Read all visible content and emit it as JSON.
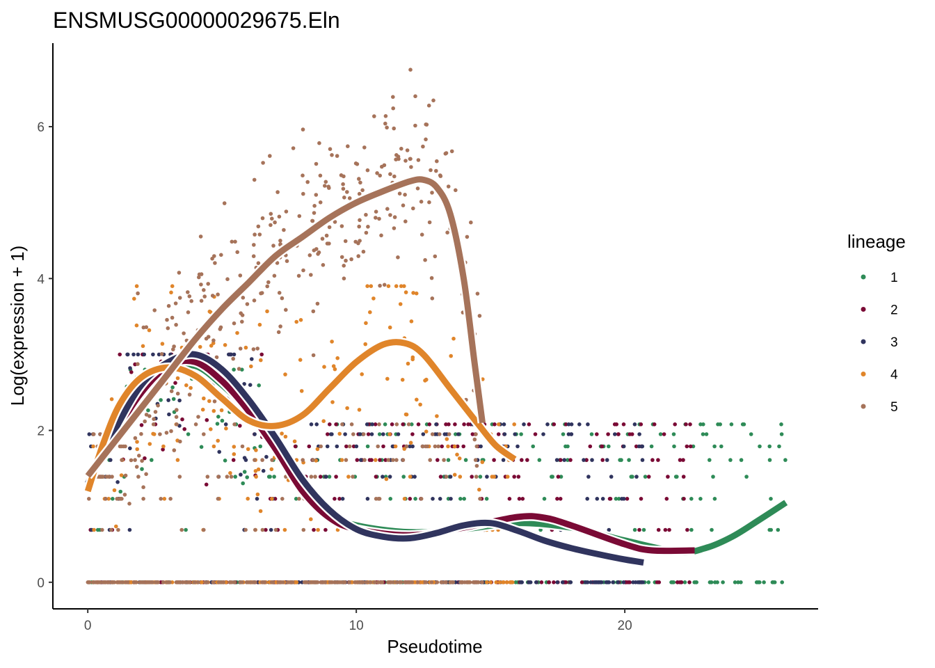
{
  "chart_data": {
    "type": "scatter",
    "title": "ENSMUSG00000029675.Eln",
    "xlabel": "Pseudotime",
    "ylabel": "Log(expression + 1)",
    "xlim": [
      -1.3,
      27.2
    ],
    "ylim": [
      -0.35,
      7.1
    ],
    "xticks": [
      0,
      10,
      20
    ],
    "yticks": [
      0,
      2,
      4,
      6
    ],
    "legend": {
      "title": "lineage",
      "position": "right"
    },
    "series": [
      {
        "name": "1",
        "color": "#2e8b57",
        "x_range": [
          0,
          26
        ],
        "peak": 2.8,
        "curve": [
          [
            0,
            1.3
          ],
          [
            1,
            1.9
          ],
          [
            2,
            2.45
          ],
          [
            3,
            2.8
          ],
          [
            4,
            2.85
          ],
          [
            5,
            2.6
          ],
          [
            6,
            2.25
          ],
          [
            7,
            1.8
          ],
          [
            8,
            1.25
          ],
          [
            9,
            0.9
          ],
          [
            10,
            0.75
          ],
          [
            12,
            0.66
          ],
          [
            14,
            0.7
          ],
          [
            16,
            0.78
          ],
          [
            18,
            0.72
          ],
          [
            20,
            0.55
          ],
          [
            22,
            0.4
          ],
          [
            23,
            0.45
          ],
          [
            24,
            0.6
          ],
          [
            25,
            0.82
          ],
          [
            26,
            1.05
          ]
        ]
      },
      {
        "name": "2",
        "color": "#7a0a35",
        "x_range": [
          0,
          22.6
        ],
        "peak": 3.0,
        "curve": [
          [
            0,
            1.3
          ],
          [
            1,
            1.95
          ],
          [
            2,
            2.5
          ],
          [
            3,
            2.85
          ],
          [
            4,
            2.9
          ],
          [
            5,
            2.65
          ],
          [
            6,
            2.25
          ],
          [
            7,
            1.75
          ],
          [
            8,
            1.2
          ],
          [
            9,
            0.85
          ],
          [
            10,
            0.7
          ],
          [
            12,
            0.62
          ],
          [
            14,
            0.72
          ],
          [
            16,
            0.86
          ],
          [
            17,
            0.85
          ],
          [
            18,
            0.75
          ],
          [
            20,
            0.5
          ],
          [
            21,
            0.42
          ],
          [
            22.6,
            0.42
          ]
        ]
      },
      {
        "name": "3",
        "color": "#30345e",
        "x_range": [
          0,
          20.7
        ],
        "peak": 3.0,
        "curve": [
          [
            0,
            1.3
          ],
          [
            1,
            2.0
          ],
          [
            2,
            2.6
          ],
          [
            3,
            2.9
          ],
          [
            4,
            3.0
          ],
          [
            5,
            2.8
          ],
          [
            6,
            2.4
          ],
          [
            7,
            1.9
          ],
          [
            8,
            1.35
          ],
          [
            9,
            0.95
          ],
          [
            10,
            0.7
          ],
          [
            11,
            0.6
          ],
          [
            12,
            0.58
          ],
          [
            13,
            0.65
          ],
          [
            14,
            0.75
          ],
          [
            15,
            0.78
          ],
          [
            16,
            0.68
          ],
          [
            17,
            0.55
          ],
          [
            18,
            0.45
          ],
          [
            19,
            0.37
          ],
          [
            20,
            0.3
          ],
          [
            20.7,
            0.26
          ]
        ]
      },
      {
        "name": "4",
        "color": "#e0852a",
        "x_range": [
          0,
          15.9
        ],
        "peak": 3.9,
        "curve": [
          [
            0,
            1.2
          ],
          [
            0.6,
            1.85
          ],
          [
            1.2,
            2.35
          ],
          [
            2,
            2.7
          ],
          [
            3,
            2.83
          ],
          [
            4,
            2.72
          ],
          [
            5,
            2.42
          ],
          [
            6,
            2.13
          ],
          [
            7,
            2.06
          ],
          [
            8,
            2.2
          ],
          [
            9,
            2.55
          ],
          [
            10,
            2.9
          ],
          [
            11,
            3.13
          ],
          [
            11.8,
            3.15
          ],
          [
            12.5,
            3.0
          ],
          [
            13.5,
            2.55
          ],
          [
            14.5,
            2.1
          ],
          [
            15.2,
            1.8
          ],
          [
            15.9,
            1.62
          ]
        ]
      },
      {
        "name": "5",
        "color": "#a6735a",
        "x_range": [
          0,
          14.8
        ],
        "peak": 6.75,
        "curve": [
          [
            0,
            1.4
          ],
          [
            1,
            1.85
          ],
          [
            2,
            2.3
          ],
          [
            3,
            2.75
          ],
          [
            4,
            3.2
          ],
          [
            5,
            3.6
          ],
          [
            6,
            3.95
          ],
          [
            7,
            4.3
          ],
          [
            8,
            4.55
          ],
          [
            9,
            4.8
          ],
          [
            10,
            5.0
          ],
          [
            11,
            5.15
          ],
          [
            12,
            5.28
          ],
          [
            12.5,
            5.3
          ],
          [
            13,
            5.2
          ],
          [
            13.5,
            4.85
          ],
          [
            14,
            4.0
          ],
          [
            14.4,
            2.9
          ],
          [
            14.7,
            2.1
          ]
        ]
      }
    ]
  }
}
